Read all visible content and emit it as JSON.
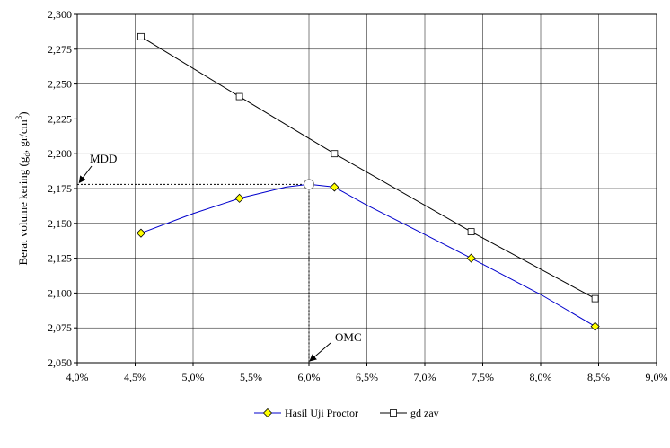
{
  "chart_data": {
    "type": "line",
    "ylabel": "Berat volume kering (gd, gr/cm3)",
    "ylabel_parts": {
      "main": "Berat volume kering (g",
      "sub": "d",
      "mid": ", gr/cm",
      "sup": "3",
      "end": ")"
    },
    "xlim": [
      0.04,
      0.09
    ],
    "ylim": [
      2.05,
      2.3
    ],
    "grid": true,
    "legend_position": "bottom",
    "xticks": [
      "4,0%",
      "4,5%",
      "5,0%",
      "5,5%",
      "6,0%",
      "6,5%",
      "7,0%",
      "7,5%",
      "8,0%",
      "8,5%",
      "9,0%"
    ],
    "yticks": [
      "2,050",
      "2,075",
      "2,100",
      "2,125",
      "2,150",
      "2,175",
      "2,200",
      "2,225",
      "2,250",
      "2,275",
      "2,300"
    ],
    "series": [
      {
        "name": "Hasil Uji Proctor",
        "color": "#0000cc",
        "marker": "diamond",
        "marker_color": "#ffff00",
        "x": [
          0.0455,
          0.054,
          0.0622,
          0.074,
          0.0847
        ],
        "y": [
          2.143,
          2.168,
          2.176,
          2.125,
          2.076
        ],
        "curve_x": [
          0.0455,
          0.05,
          0.054,
          0.058,
          0.06,
          0.0622,
          0.065,
          0.07,
          0.074,
          0.08,
          0.0847
        ],
        "curve_y": [
          2.143,
          2.157,
          2.168,
          2.176,
          2.178,
          2.176,
          2.163,
          2.142,
          2.125,
          2.099,
          2.076
        ]
      },
      {
        "name": "gd zav",
        "color": "#000000",
        "marker": "square",
        "marker_color": "#ffffff",
        "x": [
          0.0455,
          0.054,
          0.0622,
          0.074,
          0.0847
        ],
        "y": [
          2.284,
          2.241,
          2.2,
          2.144,
          2.096
        ]
      }
    ],
    "annotations": [
      {
        "text": "MDD",
        "x": 0.0401,
        "y": 2.178
      },
      {
        "text": "OMC",
        "x": 0.06,
        "y": 2.05
      }
    ],
    "peak": {
      "x": 0.06,
      "y": 2.178
    }
  }
}
